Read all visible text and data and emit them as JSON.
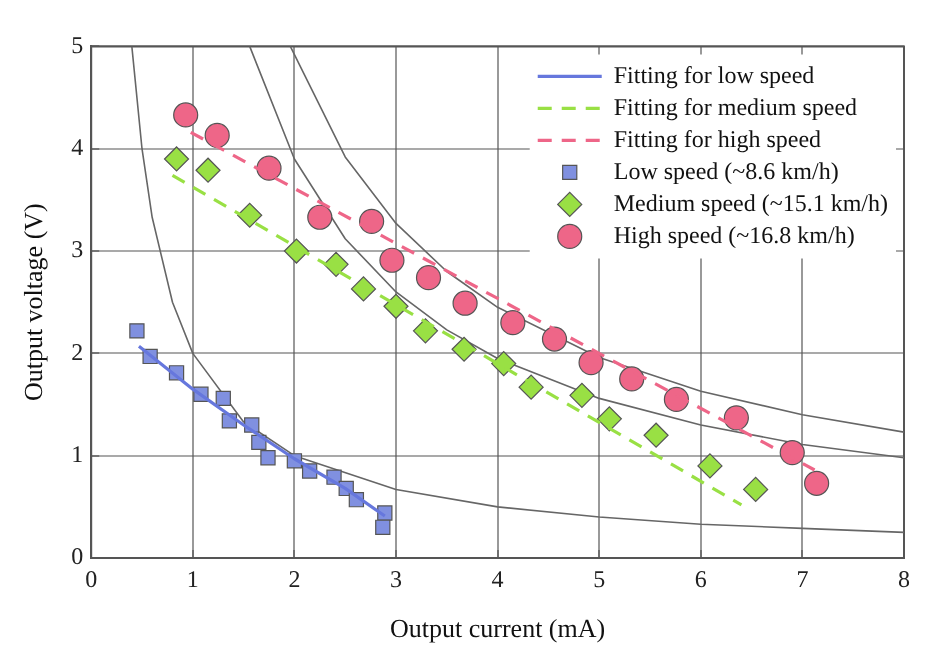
{
  "chart_data": {
    "type": "scatter",
    "xlabel": "Output current (mA)",
    "ylabel": "Output voltage (V)",
    "xlim": [
      0,
      8
    ],
    "xticks": [
      0,
      1,
      2,
      3,
      4,
      5,
      6,
      7,
      8
    ],
    "ylim": [
      0,
      5
    ],
    "yticks": [
      0,
      1,
      2,
      3,
      4,
      5
    ],
    "grid": true,
    "legend": "top right",
    "series": [
      {
        "name": "Fitting for low speed",
        "type": "line",
        "color": "#6677dd",
        "line_style": "solid",
        "marker": "none",
        "x": [
          0.47,
          1.0,
          1.5,
          2.0,
          2.5,
          2.89
        ],
        "values": [
          2.07,
          1.65,
          1.3,
          0.97,
          0.68,
          0.41
        ]
      },
      {
        "name": "Fitting for medium speed",
        "type": "line",
        "color": "#99e044",
        "line_style": "dashed",
        "marker": "none",
        "x": [
          0.8,
          6.4
        ],
        "values": [
          3.74,
          0.52
        ]
      },
      {
        "name": "Fitting for high speed",
        "type": "line",
        "color": "#ee6688",
        "line_style": "dashed",
        "marker": "none",
        "x": [
          0.98,
          7.12
        ],
        "values": [
          4.16,
          0.86
        ]
      },
      {
        "name": "Low speed (~8.6 km/h)",
        "color": "#8090e0",
        "marker": "square",
        "x": [
          0.45,
          0.58,
          0.84,
          1.08,
          1.3,
          1.36,
          1.58,
          1.65,
          1.74,
          2.0,
          2.15,
          2.39,
          2.51,
          2.61,
          2.89,
          2.87
        ],
        "values": [
          2.22,
          1.97,
          1.81,
          1.6,
          1.56,
          1.34,
          1.3,
          1.13,
          0.98,
          0.95,
          0.85,
          0.79,
          0.68,
          0.57,
          0.44,
          0.3
        ]
      },
      {
        "name": "Medium speed (~15.1 km/h)",
        "color": "#99e044",
        "marker": "diamond",
        "x": [
          0.84,
          1.15,
          1.56,
          2.02,
          2.41,
          2.68,
          3.0,
          3.29,
          3.67,
          4.06,
          4.33,
          4.83,
          5.1,
          5.56,
          6.09,
          6.54
        ],
        "values": [
          3.9,
          3.79,
          3.35,
          3.0,
          2.87,
          2.63,
          2.46,
          2.22,
          2.04,
          1.9,
          1.67,
          1.59,
          1.36,
          1.2,
          0.9,
          0.67
        ]
      },
      {
        "name": "High speed (~16.8 km/h)",
        "color": "#ee6688",
        "marker": "circle",
        "x": [
          0.93,
          1.24,
          1.75,
          2.25,
          2.76,
          2.96,
          3.32,
          3.68,
          4.15,
          4.56,
          4.92,
          5.32,
          5.76,
          6.35,
          6.9,
          7.14
        ],
        "values": [
          4.33,
          4.13,
          3.81,
          3.33,
          3.29,
          2.91,
          2.74,
          2.49,
          2.3,
          2.14,
          1.91,
          1.75,
          1.55,
          1.37,
          1.03,
          0.73
        ]
      },
      {
        "type": "line",
        "color": "#666666",
        "line_style": "solid",
        "marker": "none",
        "x": [
          0.4,
          0.5,
          0.6,
          0.8,
          1,
          1.5,
          2,
          3,
          4,
          5,
          6,
          7,
          8
        ],
        "values": [
          5,
          4,
          3.33,
          2.5,
          2,
          1.33,
          1,
          0.67,
          0.5,
          0.4,
          0.33,
          0.29,
          0.25
        ]
      },
      {
        "type": "line",
        "color": "#666666",
        "line_style": "solid",
        "marker": "none",
        "x": [
          1.56,
          2,
          2.5,
          3,
          3.5,
          4,
          5,
          6,
          7,
          8
        ],
        "values": [
          5,
          3.9,
          3.12,
          2.6,
          2.23,
          1.95,
          1.56,
          1.3,
          1.11,
          0.98
        ]
      },
      {
        "type": "line",
        "color": "#666666",
        "line_style": "solid",
        "marker": "none",
        "x": [
          1.96,
          2.5,
          3,
          3.5,
          4,
          5,
          6,
          7,
          8
        ],
        "values": [
          5,
          3.92,
          3.27,
          2.8,
          2.45,
          1.96,
          1.63,
          1.4,
          1.23
        ]
      }
    ]
  }
}
